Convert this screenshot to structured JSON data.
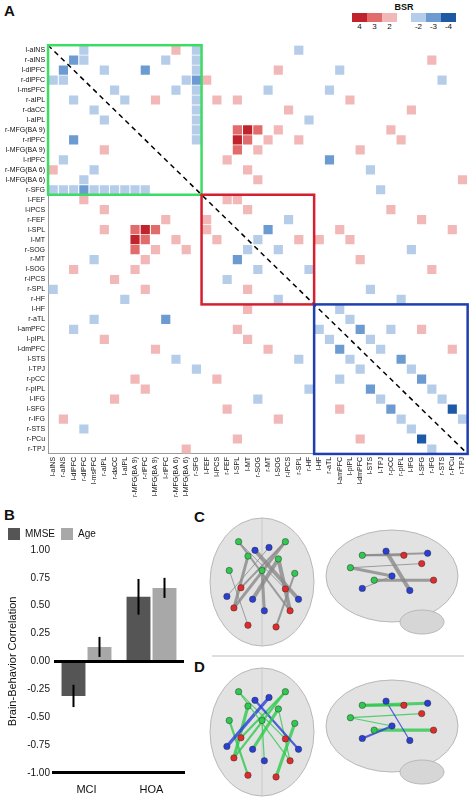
{
  "chart_data": [
    {
      "type": "heatmap",
      "panel": "A",
      "labels": [
        "l-aINS",
        "r-aINS",
        "l-dlPFC",
        "r-dlPFC",
        "l-msPFC",
        "r-aIPL",
        "r-daCC",
        "l-aIPL",
        "r-MFG(BA 9)",
        "r-rlPFC",
        "l-MFG(BA 9)",
        "l-rlPFC",
        "r-MFG(BA 6)",
        "l-MFG(BA 6)",
        "r-SFG",
        "l-FEF",
        "l-iPCS",
        "r-FEF",
        "l-SPL",
        "l-MT",
        "r-SOG",
        "r-MT",
        "l-SOG",
        "r-iPCS",
        "r-SPL",
        "r-HF",
        "l-HF",
        "r-aTL",
        "l-amPFC",
        "l-pIPL",
        "l-dmPFC",
        "l-STS",
        "l-TPJ",
        "r-pCC",
        "r-pIPL",
        "l-IFG",
        "l-SFG",
        "r-IFG",
        "r-STS",
        "r-PCu",
        "r-TPJ"
      ],
      "colorbar": {
        "title": "BSR",
        "ticks": [
          4,
          3,
          2,
          -2,
          -3,
          -4
        ],
        "colors": [
          "#c0232b",
          "#e26b6b",
          "#f2b8b8",
          "#b5cde9",
          "#6c9bd2",
          "#1d5aa6"
        ]
      },
      "boxes": [
        {
          "start": "l-aINS",
          "end": "r-SFG",
          "color": "#3ddc64"
        },
        {
          "start": "l-FEF",
          "end": "r-HF",
          "color": "#d42031"
        },
        {
          "start": "l-HF",
          "end": "r-TPJ",
          "color": "#1f3fb0"
        }
      ],
      "grid": false,
      "cells": [
        [
          14,
          0,
          -2
        ],
        [
          0,
          14,
          -2
        ],
        [
          14,
          1,
          -2
        ],
        [
          1,
          14,
          -2
        ],
        [
          14,
          2,
          -2
        ],
        [
          2,
          14,
          -2
        ],
        [
          14,
          3,
          -3
        ],
        [
          3,
          14,
          -3
        ],
        [
          14,
          4,
          -2
        ],
        [
          4,
          14,
          -2
        ],
        [
          14,
          5,
          -2
        ],
        [
          5,
          14,
          -2
        ],
        [
          14,
          6,
          -2
        ],
        [
          6,
          14,
          -2
        ],
        [
          14,
          7,
          -2
        ],
        [
          7,
          14,
          -2
        ],
        [
          14,
          8,
          -2
        ],
        [
          8,
          14,
          -2
        ],
        [
          14,
          9,
          -2
        ],
        [
          9,
          14,
          -2
        ],
        [
          2,
          1,
          -3
        ],
        [
          1,
          2,
          -3
        ],
        [
          3,
          1,
          -2
        ],
        [
          1,
          3,
          -2
        ],
        [
          3,
          0,
          -2
        ],
        [
          0,
          3,
          -2
        ],
        [
          5,
          2,
          -2
        ],
        [
          2,
          5,
          -2
        ],
        [
          6,
          4,
          -2
        ],
        [
          4,
          6,
          -2
        ],
        [
          7,
          5,
          -2
        ],
        [
          5,
          7,
          -2
        ],
        [
          9,
          2,
          -3
        ],
        [
          2,
          9,
          -3
        ],
        [
          11,
          1,
          -2
        ],
        [
          1,
          11,
          -2
        ],
        [
          12,
          4,
          -2
        ],
        [
          4,
          12,
          -2
        ],
        [
          13,
          3,
          -2
        ],
        [
          3,
          13,
          -2
        ],
        [
          10,
          5,
          2
        ],
        [
          5,
          10,
          2
        ],
        [
          12,
          0,
          2
        ],
        [
          0,
          12,
          2
        ],
        [
          18,
          8,
          3
        ],
        [
          8,
          18,
          3
        ],
        [
          18,
          9,
          4
        ],
        [
          9,
          18,
          4
        ],
        [
          18,
          10,
          3
        ],
        [
          10,
          18,
          3
        ],
        [
          19,
          8,
          4
        ],
        [
          8,
          19,
          4
        ],
        [
          19,
          9,
          3
        ],
        [
          9,
          19,
          3
        ],
        [
          20,
          8,
          3
        ],
        [
          8,
          20,
          3
        ],
        [
          20,
          10,
          2
        ],
        [
          10,
          20,
          2
        ],
        [
          21,
          9,
          2
        ],
        [
          9,
          21,
          2
        ],
        [
          22,
          8,
          2
        ],
        [
          8,
          22,
          2
        ],
        [
          17,
          11,
          2
        ],
        [
          11,
          17,
          2
        ],
        [
          16,
          5,
          2
        ],
        [
          5,
          16,
          2
        ],
        [
          18,
          5,
          2
        ],
        [
          5,
          18,
          2
        ],
        [
          23,
          6,
          2
        ],
        [
          6,
          23,
          2
        ],
        [
          24,
          9,
          2
        ],
        [
          9,
          24,
          2
        ],
        [
          19,
          12,
          2
        ],
        [
          12,
          19,
          2
        ],
        [
          20,
          13,
          2
        ],
        [
          13,
          20,
          2
        ],
        [
          15,
          3,
          2
        ],
        [
          3,
          15,
          2
        ],
        [
          22,
          2,
          2
        ],
        [
          2,
          22,
          2
        ],
        [
          25,
          7,
          -2
        ],
        [
          7,
          25,
          -2
        ],
        [
          24,
          0,
          -2
        ],
        [
          0,
          24,
          -2
        ],
        [
          21,
          4,
          -2
        ],
        [
          4,
          21,
          -2
        ],
        [
          18,
          15,
          2
        ],
        [
          15,
          18,
          2
        ],
        [
          19,
          16,
          2
        ],
        [
          16,
          19,
          2
        ],
        [
          20,
          19,
          -2
        ],
        [
          19,
          20,
          -2
        ],
        [
          21,
          18,
          -3
        ],
        [
          18,
          21,
          -3
        ],
        [
          22,
          20,
          -2
        ],
        [
          20,
          22,
          -2
        ],
        [
          23,
          17,
          -2
        ],
        [
          17,
          23,
          -2
        ],
        [
          24,
          19,
          2
        ],
        [
          19,
          24,
          2
        ],
        [
          25,
          22,
          -2
        ],
        [
          22,
          25,
          -2
        ],
        [
          17,
          15,
          2
        ],
        [
          15,
          17,
          2
        ],
        [
          28,
          26,
          -2
        ],
        [
          26,
          28,
          -2
        ],
        [
          29,
          27,
          -2
        ],
        [
          27,
          29,
          -2
        ],
        [
          30,
          28,
          -3
        ],
        [
          28,
          30,
          -3
        ],
        [
          31,
          29,
          -2
        ],
        [
          29,
          31,
          -2
        ],
        [
          32,
          30,
          -2
        ],
        [
          30,
          32,
          -2
        ],
        [
          33,
          28,
          -2
        ],
        [
          28,
          33,
          -2
        ],
        [
          34,
          31,
          -3
        ],
        [
          31,
          34,
          -3
        ],
        [
          35,
          32,
          -2
        ],
        [
          32,
          35,
          -2
        ],
        [
          36,
          33,
          -3
        ],
        [
          33,
          36,
          -3
        ],
        [
          37,
          34,
          -2
        ],
        [
          34,
          37,
          -2
        ],
        [
          38,
          35,
          -2
        ],
        [
          35,
          38,
          -2
        ],
        [
          39,
          36,
          -4
        ],
        [
          36,
          39,
          -4
        ],
        [
          40,
          37,
          -2
        ],
        [
          37,
          40,
          -2
        ],
        [
          36,
          28,
          2
        ],
        [
          28,
          36,
          2
        ],
        [
          39,
          30,
          2
        ],
        [
          30,
          39,
          2
        ],
        [
          27,
          4,
          -2
        ],
        [
          4,
          27,
          -2
        ],
        [
          28,
          2,
          -2
        ],
        [
          2,
          28,
          -2
        ],
        [
          30,
          10,
          2
        ],
        [
          10,
          30,
          2
        ],
        [
          31,
          12,
          -2
        ],
        [
          12,
          31,
          -2
        ],
        [
          33,
          8,
          2
        ],
        [
          8,
          33,
          2
        ],
        [
          35,
          6,
          2
        ],
        [
          6,
          35,
          2
        ],
        [
          37,
          1,
          2
        ],
        [
          1,
          37,
          2
        ],
        [
          38,
          3,
          -2
        ],
        [
          3,
          38,
          -2
        ],
        [
          40,
          13,
          2
        ],
        [
          13,
          40,
          2
        ],
        [
          29,
          5,
          2
        ],
        [
          5,
          29,
          2
        ],
        [
          32,
          14,
          -2
        ],
        [
          14,
          32,
          -2
        ],
        [
          34,
          9,
          2
        ],
        [
          9,
          34,
          2
        ],
        [
          27,
          11,
          -3
        ],
        [
          11,
          27,
          -3
        ],
        [
          28,
          18,
          2
        ],
        [
          18,
          28,
          2
        ],
        [
          29,
          19,
          2
        ],
        [
          19,
          29,
          2
        ],
        [
          30,
          21,
          2
        ],
        [
          21,
          30,
          2
        ],
        [
          31,
          24,
          -2
        ],
        [
          24,
          31,
          -2
        ],
        [
          33,
          16,
          2
        ],
        [
          16,
          33,
          2
        ],
        [
          35,
          20,
          -2
        ],
        [
          20,
          35,
          -2
        ],
        [
          37,
          22,
          2
        ],
        [
          22,
          37,
          2
        ],
        [
          39,
          18,
          2
        ],
        [
          18,
          39,
          2
        ],
        [
          34,
          25,
          -2
        ],
        [
          25,
          34,
          -2
        ],
        [
          36,
          17,
          2
        ],
        [
          17,
          36,
          2
        ],
        [
          26,
          19,
          2
        ],
        [
          19,
          26,
          2
        ]
      ]
    },
    {
      "type": "bar",
      "panel": "B",
      "categories": [
        "MCI",
        "HOA"
      ],
      "series": [
        {
          "name": "MMSE",
          "color": "#555555",
          "values": [
            -0.31,
            0.58
          ],
          "error": [
            0.1,
            0.16
          ]
        },
        {
          "name": "Age",
          "color": "#a8a8a8",
          "values": [
            0.13,
            0.66
          ],
          "error": [
            0.09,
            0.09
          ]
        }
      ],
      "ylabel": "Brain-Behavior Correlation",
      "ylim": [
        -1,
        1
      ],
      "yticks": [
        {
          "value": -1,
          "label": "-1.00"
        },
        {
          "value": -0.75,
          "label": "-0.75"
        },
        {
          "value": -0.5,
          "label": "-0.50"
        },
        {
          "value": -0.25,
          "label": "-0.25"
        },
        {
          "value": 0,
          "label": "0.00"
        },
        {
          "value": 0.25,
          "label": "0.25"
        },
        {
          "value": 0.5,
          "label": "0.50"
        },
        {
          "value": 0.75,
          "label": "0.75"
        },
        {
          "value": 1,
          "label": "1.00"
        }
      ],
      "legend": "top-left",
      "grid": false
    }
  ],
  "brain_views": [
    {
      "panel": "C"
    },
    {
      "panel": "D"
    }
  ]
}
